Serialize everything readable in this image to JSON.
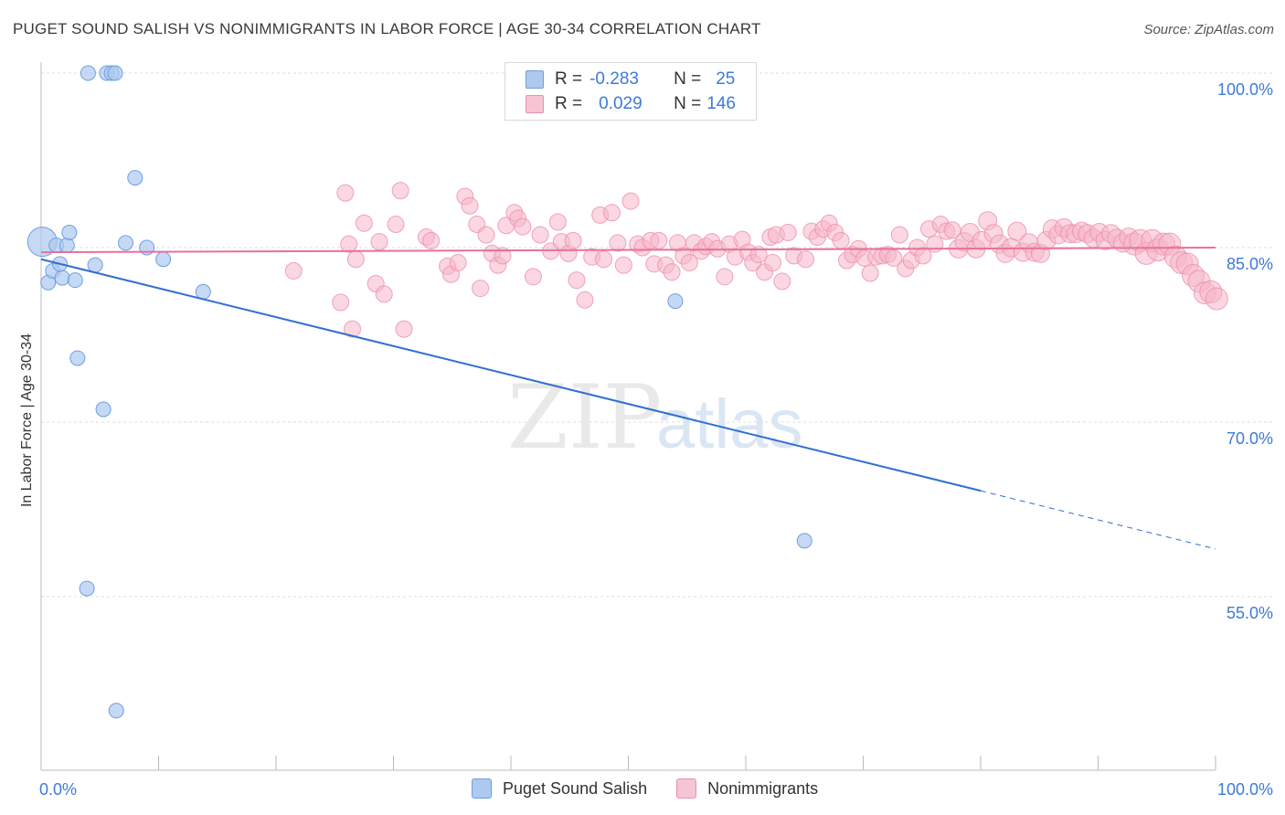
{
  "title": "PUGET SOUND SALISH VS NONIMMIGRANTS IN LABOR FORCE | AGE 30-34 CORRELATION CHART",
  "source": "Source: ZipAtlas.com",
  "watermark": {
    "zip": "ZIP",
    "atlas": "atlas"
  },
  "legend_top": {
    "rows": [
      {
        "r_label": "R =",
        "r_value": "-0.283",
        "n_label": "N =",
        "n_value": "25"
      },
      {
        "r_label": "R =",
        "r_value": "0.029",
        "n_label": "N =",
        "n_value": "146"
      }
    ]
  },
  "legend_bottom": [
    "Puget Sound Salish",
    "Nonimmigrants"
  ],
  "colors": {
    "blue_fill": "#aec9ef",
    "blue_stroke": "#6f9ee0",
    "blue_line": "#2f6fd1",
    "pink_fill": "#f5b6c9",
    "pink_stroke": "#ec8fab",
    "pink_line": "#e8709a",
    "axis_text": "#3d7ad8",
    "grid": "#dcdcdc"
  },
  "chart_data": {
    "type": "scatter",
    "title": "PUGET SOUND SALISH VS NONIMMIGRANTS IN LABOR FORCE | AGE 30-34 CORRELATION CHART",
    "xlabel": "",
    "ylabel": "In Labor Force | Age 30-34",
    "xlim": [
      0,
      100
    ],
    "ylim": [
      42,
      101.5
    ],
    "y_ticks": [
      {
        "value": 100,
        "label": "100.0%"
      },
      {
        "value": 85,
        "label": "85.0%"
      },
      {
        "value": 70,
        "label": "70.0%"
      },
      {
        "value": 55,
        "label": "55.0%"
      }
    ],
    "x_tick_labels": [
      {
        "value": 0,
        "label": "0.0%"
      },
      {
        "value": 100,
        "label": "100.0%"
      }
    ],
    "x_minor_ticks": [
      0,
      10,
      20,
      30,
      40,
      50,
      60,
      70,
      80,
      90,
      100
    ],
    "series": [
      {
        "name": "Puget Sound Salish",
        "color": "blue",
        "trend": {
          "x0": 0,
          "y0": 84.0,
          "x1": 80,
          "y1": 64.1,
          "dash_to_x": 100,
          "dash_to_y": 59.1
        },
        "points": [
          [
            0.1,
            85.5,
            16
          ],
          [
            0.6,
            82.0,
            8
          ],
          [
            1.0,
            83.0,
            8
          ],
          [
            1.3,
            85.2,
            8
          ],
          [
            1.8,
            82.4,
            8
          ],
          [
            1.6,
            83.6,
            8
          ],
          [
            2.2,
            85.2,
            8
          ],
          [
            2.4,
            86.3,
            8
          ],
          [
            2.9,
            82.2,
            8
          ],
          [
            3.1,
            75.5,
            8
          ],
          [
            4.0,
            100.0,
            8
          ],
          [
            4.6,
            83.5,
            8
          ],
          [
            5.3,
            71.1,
            8
          ],
          [
            5.6,
            100.0,
            8
          ],
          [
            6.0,
            100.0,
            8
          ],
          [
            6.3,
            100.0,
            8
          ],
          [
            6.4,
            45.2,
            8
          ],
          [
            7.2,
            85.4,
            8
          ],
          [
            8.0,
            91.0,
            8
          ],
          [
            9.0,
            85.0,
            8
          ],
          [
            10.4,
            84.0,
            8
          ],
          [
            13.8,
            81.2,
            8
          ],
          [
            54.0,
            80.4,
            8
          ],
          [
            65.0,
            59.8,
            8
          ],
          [
            3.9,
            55.7,
            8
          ]
        ]
      },
      {
        "name": "Nonimmigrants",
        "color": "pink",
        "trend": {
          "x0": 0,
          "y0": 84.6,
          "x1": 100,
          "y1": 85.0
        },
        "points": [
          [
            21.5,
            83.0
          ],
          [
            25.5,
            80.3
          ],
          [
            25.9,
            89.7
          ],
          [
            26.2,
            85.3
          ],
          [
            26.5,
            78.0
          ],
          [
            26.8,
            84.0
          ],
          [
            27.5,
            87.1
          ],
          [
            28.8,
            85.5
          ],
          [
            28.5,
            81.9
          ],
          [
            29.2,
            81.0
          ],
          [
            30.2,
            87.0
          ],
          [
            30.6,
            89.9
          ],
          [
            30.9,
            78.0
          ],
          [
            32.8,
            85.9
          ],
          [
            33.2,
            85.6
          ],
          [
            34.6,
            83.4
          ],
          [
            34.9,
            82.7
          ],
          [
            35.5,
            83.7
          ],
          [
            36.1,
            89.4
          ],
          [
            36.5,
            88.6
          ],
          [
            37.1,
            87.0
          ],
          [
            37.4,
            81.5
          ],
          [
            37.9,
            86.1
          ],
          [
            38.4,
            84.5
          ],
          [
            38.9,
            83.5
          ],
          [
            39.3,
            84.3
          ],
          [
            39.6,
            86.9
          ],
          [
            40.3,
            88.0
          ],
          [
            40.6,
            87.5
          ],
          [
            41.0,
            86.8
          ],
          [
            41.9,
            82.5
          ],
          [
            42.5,
            86.1
          ],
          [
            43.4,
            84.7
          ],
          [
            44.0,
            87.2
          ],
          [
            44.3,
            85.5
          ],
          [
            44.9,
            84.5
          ],
          [
            45.3,
            85.6
          ],
          [
            45.6,
            82.2
          ],
          [
            46.3,
            80.5
          ],
          [
            46.9,
            84.2
          ],
          [
            47.6,
            87.8
          ],
          [
            47.9,
            84.0
          ],
          [
            48.6,
            88.0
          ],
          [
            49.1,
            85.4
          ],
          [
            49.6,
            83.5
          ],
          [
            50.2,
            89.0
          ],
          [
            50.8,
            85.3
          ],
          [
            51.2,
            85.0
          ],
          [
            51.9,
            85.6
          ],
          [
            52.2,
            83.6
          ],
          [
            52.6,
            85.6
          ],
          [
            53.2,
            83.5
          ],
          [
            53.7,
            82.9
          ],
          [
            54.2,
            85.4
          ],
          [
            54.7,
            84.3
          ],
          [
            55.2,
            83.7
          ],
          [
            55.6,
            85.4
          ],
          [
            56.2,
            84.7
          ],
          [
            56.6,
            85.1
          ],
          [
            57.1,
            85.5
          ],
          [
            57.6,
            84.9
          ],
          [
            58.2,
            82.5
          ],
          [
            58.6,
            85.3
          ],
          [
            59.1,
            84.2
          ],
          [
            59.7,
            85.7
          ],
          [
            60.2,
            84.6
          ],
          [
            60.6,
            83.7
          ],
          [
            61.1,
            84.4
          ],
          [
            61.6,
            82.9
          ],
          [
            62.1,
            85.9
          ],
          [
            62.6,
            86.1
          ],
          [
            63.1,
            82.1
          ],
          [
            63.6,
            86.3
          ],
          [
            64.1,
            84.3
          ],
          [
            65.1,
            84.0
          ],
          [
            65.6,
            86.4
          ],
          [
            66.1,
            85.9
          ],
          [
            66.6,
            86.6
          ],
          [
            67.1,
            87.1
          ],
          [
            67.6,
            86.3
          ],
          [
            68.1,
            85.6
          ],
          [
            68.6,
            83.9
          ],
          [
            69.1,
            84.4
          ],
          [
            69.6,
            84.9
          ],
          [
            70.1,
            84.1
          ],
          [
            70.6,
            82.8
          ],
          [
            71.1,
            84.2
          ],
          [
            71.6,
            84.3
          ],
          [
            72.1,
            84.4
          ],
          [
            72.6,
            84.1
          ],
          [
            73.1,
            86.1
          ],
          [
            73.6,
            83.2
          ],
          [
            74.1,
            83.9
          ],
          [
            74.6,
            85.0
          ],
          [
            75.1,
            84.3
          ],
          [
            75.6,
            86.6
          ],
          [
            76.1,
            85.3
          ],
          [
            76.6,
            87.0
          ],
          [
            77.1,
            86.4
          ],
          [
            77.6,
            86.5
          ],
          [
            78.1,
            84.9
          ],
          [
            78.6,
            85.5
          ],
          [
            79.1,
            86.3
          ],
          [
            79.6,
            84.9
          ],
          [
            80.1,
            85.6
          ],
          [
            80.6,
            87.3
          ],
          [
            81.1,
            86.2
          ],
          [
            81.6,
            85.3
          ],
          [
            82.1,
            84.5
          ],
          [
            82.6,
            85.0
          ],
          [
            83.1,
            86.4
          ],
          [
            83.6,
            84.6
          ],
          [
            84.1,
            85.4
          ],
          [
            84.6,
            84.6
          ],
          [
            85.1,
            84.5
          ],
          [
            85.6,
            85.6
          ],
          [
            86.1,
            86.6
          ],
          [
            86.6,
            86.1
          ],
          [
            87.1,
            86.7
          ],
          [
            87.6,
            86.2
          ],
          [
            88.1,
            86.2
          ],
          [
            88.6,
            86.4
          ],
          [
            89.1,
            86.2
          ],
          [
            89.6,
            85.8
          ],
          [
            90.1,
            86.3
          ],
          [
            90.6,
            85.6
          ],
          [
            91.1,
            86.2
          ],
          [
            91.6,
            85.8
          ],
          [
            92.1,
            85.4
          ],
          [
            92.6,
            85.9
          ],
          [
            93.1,
            85.3
          ],
          [
            93.6,
            85.6
          ],
          [
            94.1,
            84.5
          ],
          [
            94.6,
            85.6
          ],
          [
            95.1,
            84.8
          ],
          [
            95.6,
            85.3
          ],
          [
            96.1,
            85.3
          ],
          [
            96.6,
            84.2
          ],
          [
            97.1,
            83.7
          ],
          [
            97.6,
            83.6
          ],
          [
            98.1,
            82.6
          ],
          [
            98.6,
            82.1
          ],
          [
            99.1,
            81.1
          ],
          [
            99.6,
            81.2
          ],
          [
            100.1,
            80.6
          ],
          [
            62.3,
            83.7
          ]
        ]
      }
    ]
  }
}
